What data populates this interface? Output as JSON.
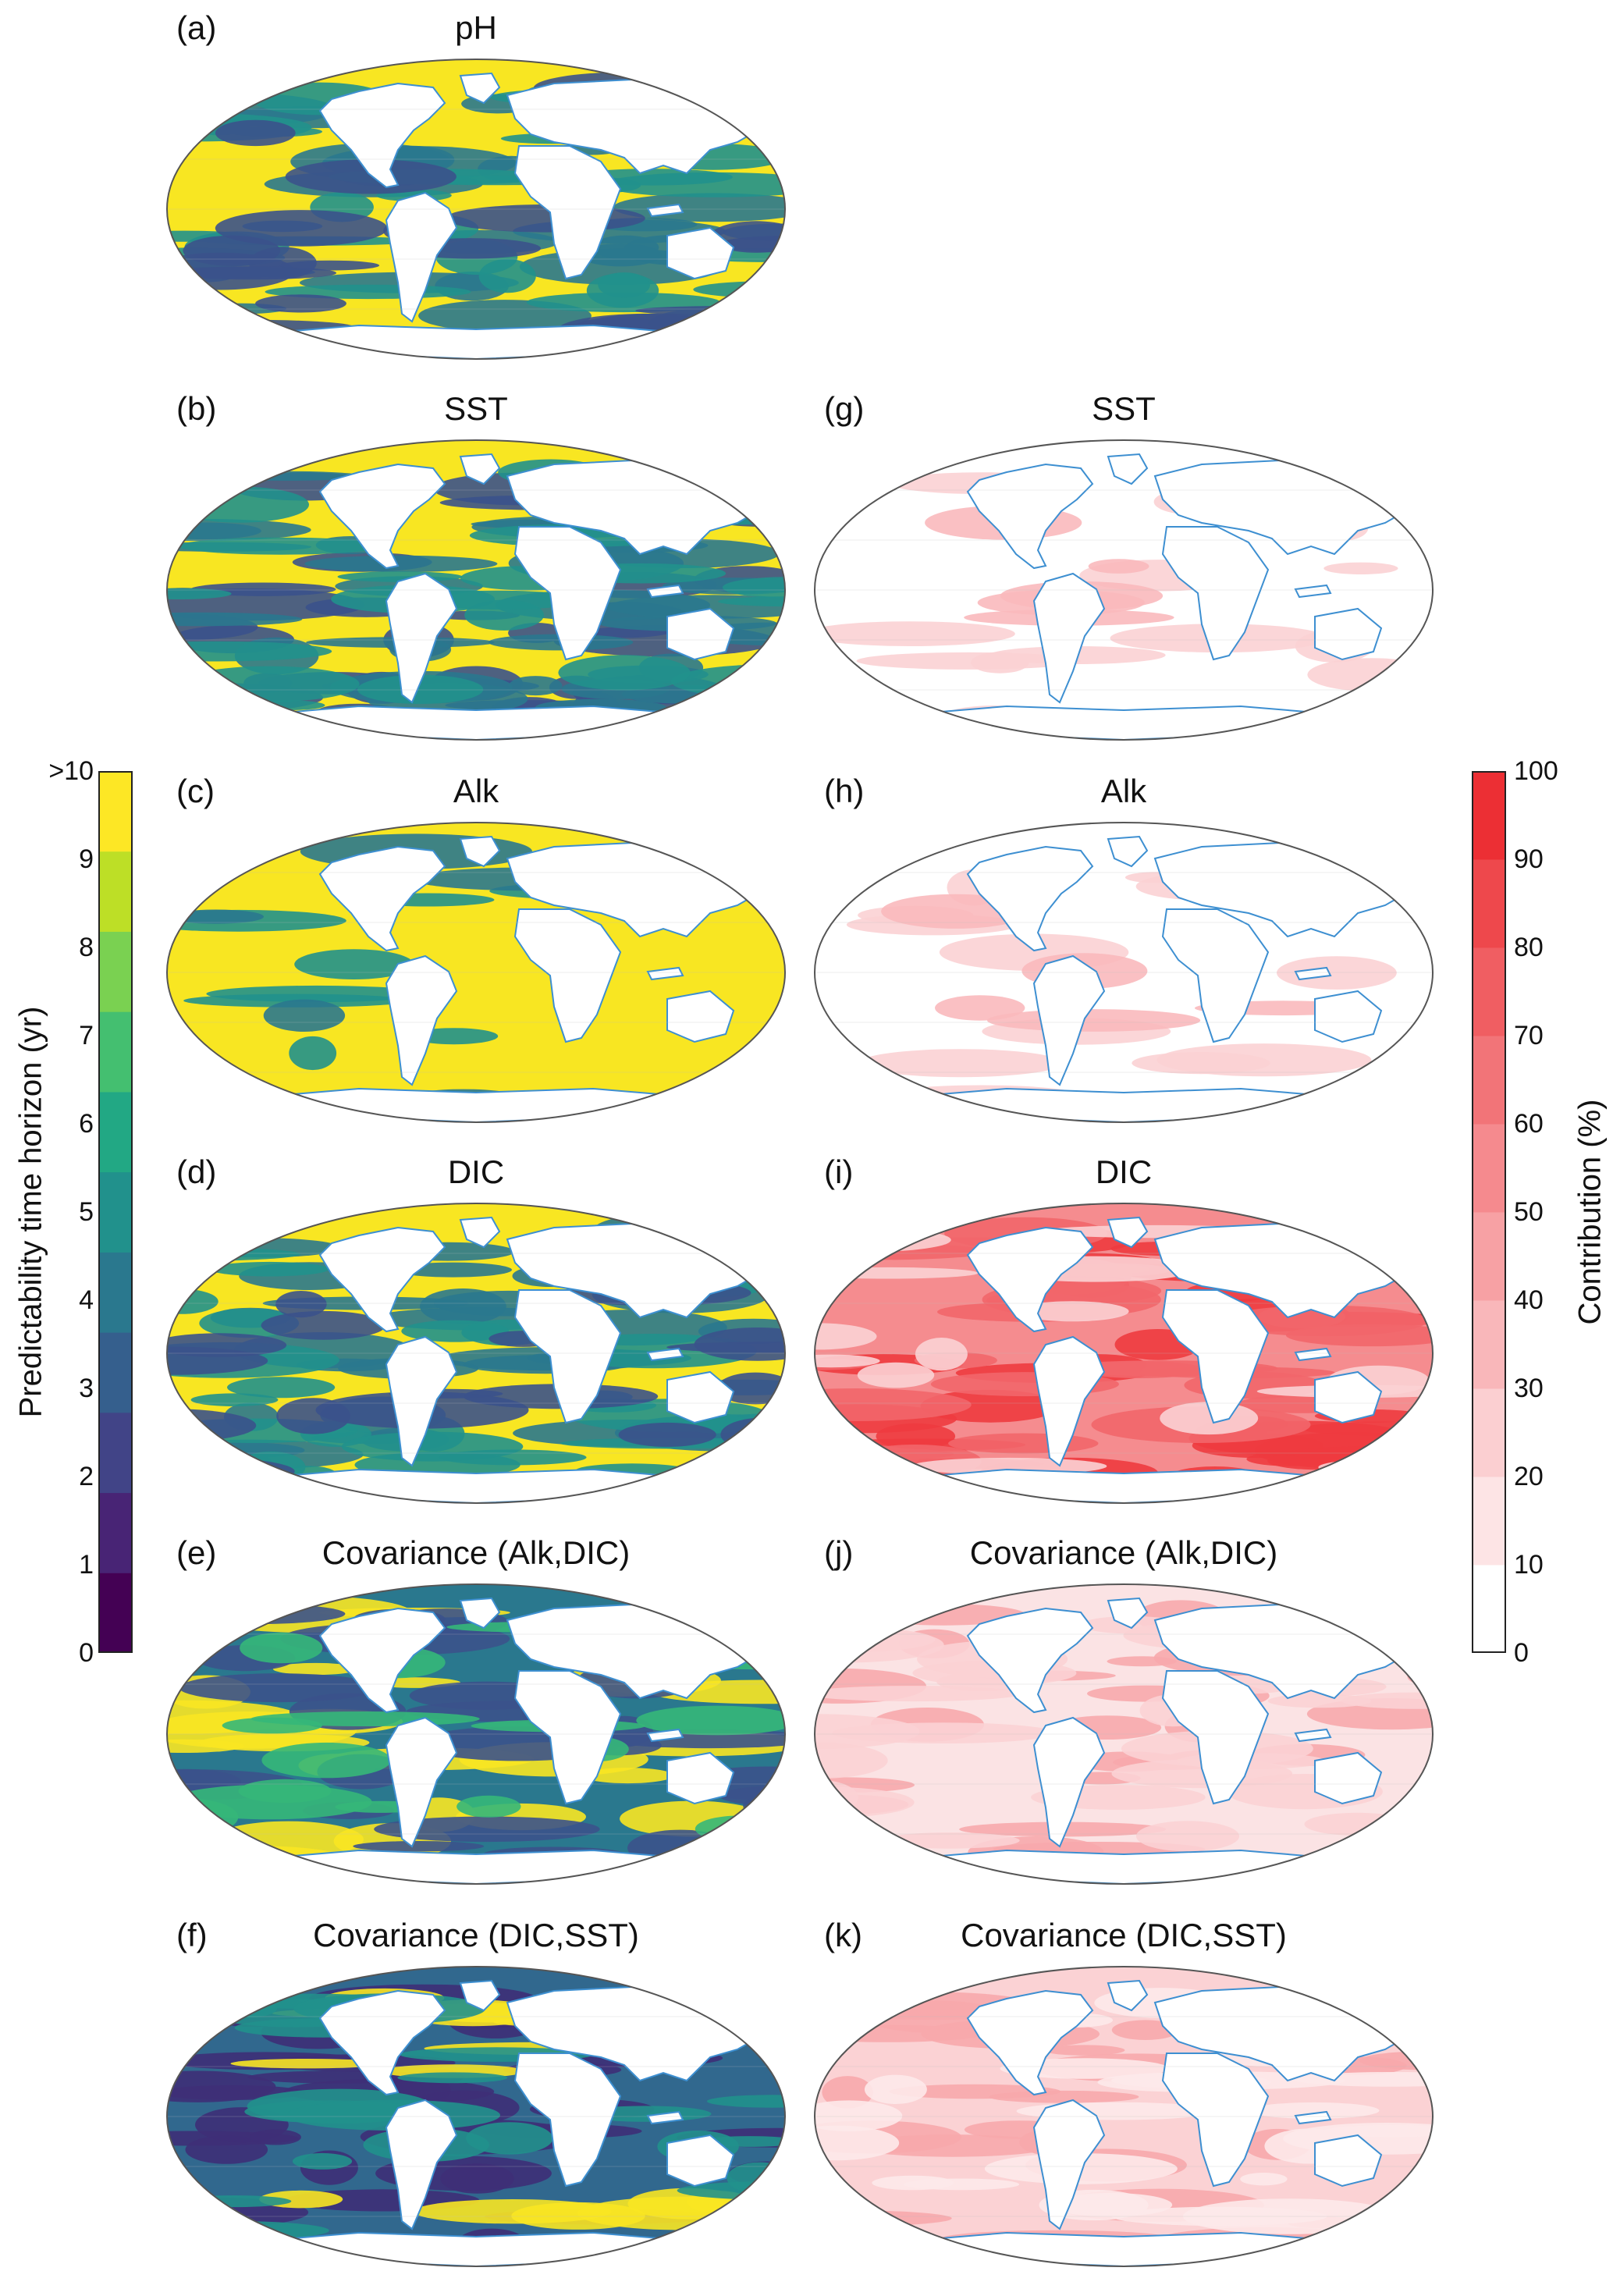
{
  "panels": [
    {
      "id": "a",
      "letter": "(a)",
      "title": "pH",
      "scheme": "horizon",
      "base": "#F8E622",
      "patches": [
        [
          "#2a788e",
          0.55
        ],
        [
          "#21918c",
          0.5
        ],
        [
          "#3b528b",
          0.35
        ]
      ]
    },
    {
      "id": "b",
      "letter": "(b)",
      "title": "SST",
      "scheme": "horizon",
      "base": "#F8E622",
      "patches": [
        [
          "#3b528b",
          0.6
        ],
        [
          "#2a788e",
          0.55
        ],
        [
          "#21918c",
          0.4
        ]
      ]
    },
    {
      "id": "c",
      "letter": "(c)",
      "title": "Alk",
      "scheme": "horizon",
      "base": "#F8E622",
      "patches": [
        [
          "#21918c",
          0.15
        ],
        [
          "#2a788e",
          0.1
        ]
      ]
    },
    {
      "id": "d",
      "letter": "(d)",
      "title": "DIC",
      "scheme": "horizon",
      "base": "#F8E622",
      "patches": [
        [
          "#2a788e",
          0.5
        ],
        [
          "#21918c",
          0.45
        ],
        [
          "#3b528b",
          0.3
        ]
      ]
    },
    {
      "id": "e",
      "letter": "(e)",
      "title": "Covariance (Alk,DIC)",
      "scheme": "horizon",
      "base": "#2a788e",
      "patches": [
        [
          "#F8E622",
          0.45
        ],
        [
          "#3b528b",
          0.5
        ],
        [
          "#35b779",
          0.3
        ]
      ]
    },
    {
      "id": "f",
      "letter": "(f)",
      "title": "Covariance (DIC,SST)",
      "scheme": "horizon",
      "base": "#31688e",
      "patches": [
        [
          "#3e2f77",
          0.6
        ],
        [
          "#F8E622",
          0.25
        ],
        [
          "#21918c",
          0.35
        ]
      ]
    },
    {
      "id": "g",
      "letter": "(g)",
      "title": "SST",
      "scheme": "contribution",
      "base": "#ffffff",
      "patches": [
        [
          "#fbd2d4",
          0.3
        ],
        [
          "#f9b9bc",
          0.1
        ]
      ]
    },
    {
      "id": "h",
      "letter": "(h)",
      "title": "Alk",
      "scheme": "contribution",
      "base": "#ffffff",
      "patches": [
        [
          "#fbd2d4",
          0.25
        ],
        [
          "#f9b9bc",
          0.08
        ]
      ]
    },
    {
      "id": "i",
      "letter": "(i)",
      "title": "DIC",
      "scheme": "contribution",
      "base": "#f58c8f",
      "patches": [
        [
          "#ee3b3f",
          0.55
        ],
        [
          "#f2666a",
          0.5
        ],
        [
          "#fbd2d4",
          0.25
        ]
      ]
    },
    {
      "id": "j",
      "letter": "(j)",
      "title": "Covariance (Alk,DIC)",
      "scheme": "contribution",
      "base": "#fbe3e4",
      "patches": [
        [
          "#f7a9ac",
          0.45
        ],
        [
          "#fbd2d4",
          0.5
        ]
      ]
    },
    {
      "id": "k",
      "letter": "(k)",
      "title": "Covariance (DIC,SST)",
      "scheme": "contribution",
      "base": "#fbd2d4",
      "patches": [
        [
          "#f7a9ac",
          0.45
        ],
        [
          "#fde9ea",
          0.4
        ]
      ]
    }
  ],
  "colorbar_left": {
    "title": "Predictability time horizon (yr)",
    "ticks": [
      "0",
      "1",
      "2",
      "3",
      "4",
      "5",
      "6",
      "7",
      "8",
      "9",
      ">10"
    ],
    "colors": [
      "#440154",
      "#482475",
      "#414487",
      "#355f8d",
      "#2a788e",
      "#21918c",
      "#22a884",
      "#44bf70",
      "#7ad151",
      "#bddf26",
      "#fde725"
    ]
  },
  "colorbar_right": {
    "title": "Contribution (%)",
    "ticks": [
      "0",
      "10",
      "20",
      "30",
      "40",
      "50",
      "60",
      "70",
      "80",
      "90",
      "100"
    ],
    "colors": [
      "#ffffff",
      "#fde4e5",
      "#fbcfd1",
      "#f9b7ba",
      "#f7a1a4",
      "#f58a8e",
      "#f27478",
      "#f05e62",
      "#ee484c",
      "#ec2f34"
    ]
  },
  "colors": {
    "coastline": "#3d8fd1",
    "land": "#ffffff",
    "frame": "#555555"
  }
}
